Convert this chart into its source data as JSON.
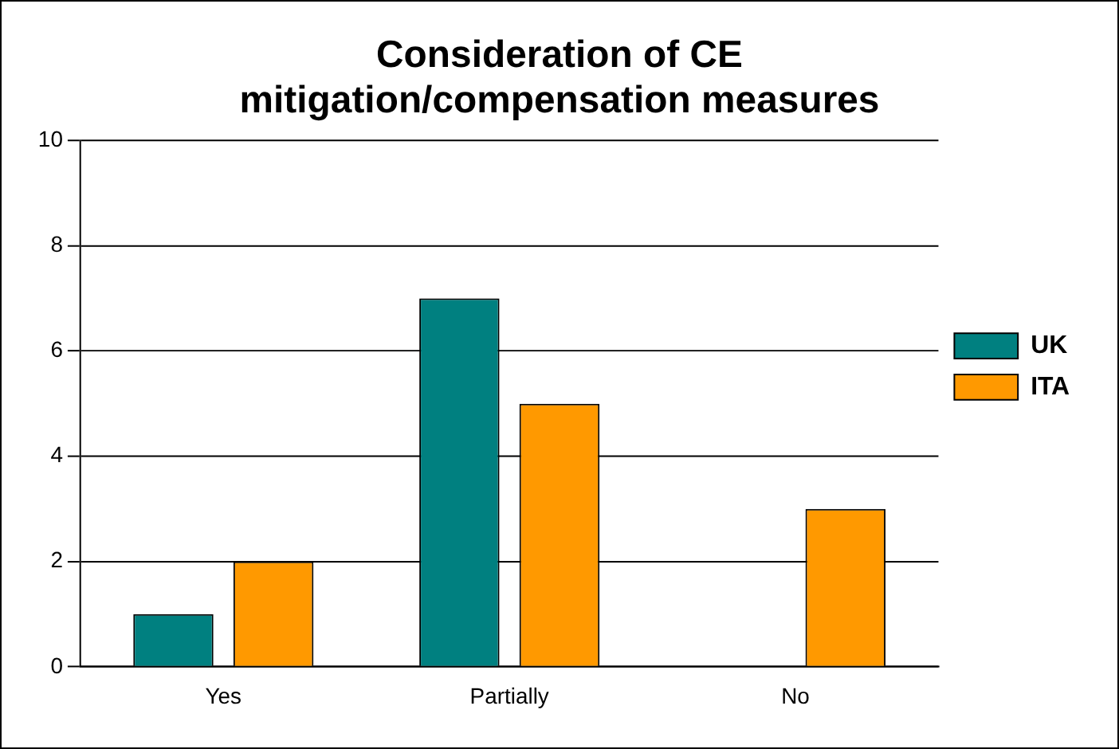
{
  "chart_data": {
    "type": "bar",
    "title": "Consideration of CE\nmitigation/compensation measures",
    "categories": [
      "Yes",
      "Partially",
      "No"
    ],
    "series": [
      {
        "name": "UK",
        "color": "#008080",
        "values": [
          1,
          7,
          0
        ]
      },
      {
        "name": "ITA",
        "color": "#ff9900",
        "values": [
          2,
          5,
          3
        ]
      }
    ],
    "ylim": [
      0,
      10
    ],
    "yticks": [
      0,
      2,
      4,
      6,
      8,
      10
    ],
    "grid": "y",
    "legend": "right"
  }
}
